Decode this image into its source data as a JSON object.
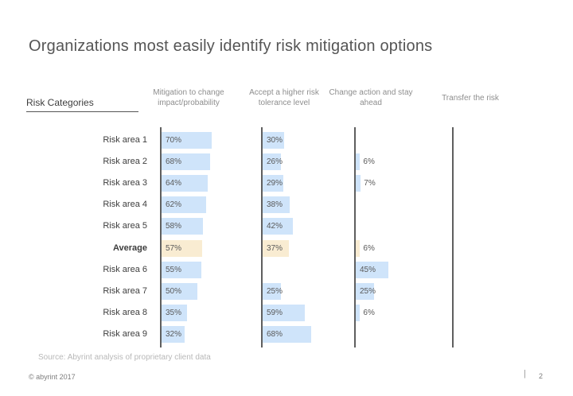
{
  "slide": {
    "title": "Organizations most easily identify risk mitigation options",
    "source": "Source: Abyrint analysis of proprietary client data",
    "footer": {
      "copyright": "© abyrint 2017",
      "separator": "|",
      "page_number": "2"
    }
  },
  "chart_data": {
    "type": "bar",
    "orientation": "horizontal",
    "unit": "%",
    "row_header": "Risk Categories",
    "categories": [
      "Risk area 1",
      "Risk area 2",
      "Risk area 3",
      "Risk area 4",
      "Risk area 5",
      "Average",
      "Risk area 6",
      "Risk area 7",
      "Risk area 8",
      "Risk area 9"
    ],
    "highlight_category": "Average",
    "series": [
      {
        "name": "Mitigation to change impact/probability",
        "values": [
          70,
          68,
          64,
          62,
          58,
          57,
          55,
          50,
          35,
          32
        ]
      },
      {
        "name": "Accept a higher risk tolerance level",
        "values": [
          30,
          26,
          29,
          38,
          42,
          37,
          null,
          25,
          59,
          68
        ]
      },
      {
        "name": "Change action and stay ahead",
        "values": [
          null,
          6,
          7,
          null,
          null,
          6,
          45,
          25,
          6,
          null
        ]
      },
      {
        "name": "Transfer the risk",
        "values": [
          null,
          null,
          null,
          null,
          null,
          null,
          null,
          null,
          null,
          null
        ]
      }
    ],
    "value_labels_shown": true,
    "xlim": [
      0,
      100
    ],
    "legend": "none",
    "grid": "off",
    "colors": {
      "bar": "#cfe4fa",
      "highlight": "#f9ecd2",
      "axis": "#5f5f5f"
    }
  }
}
